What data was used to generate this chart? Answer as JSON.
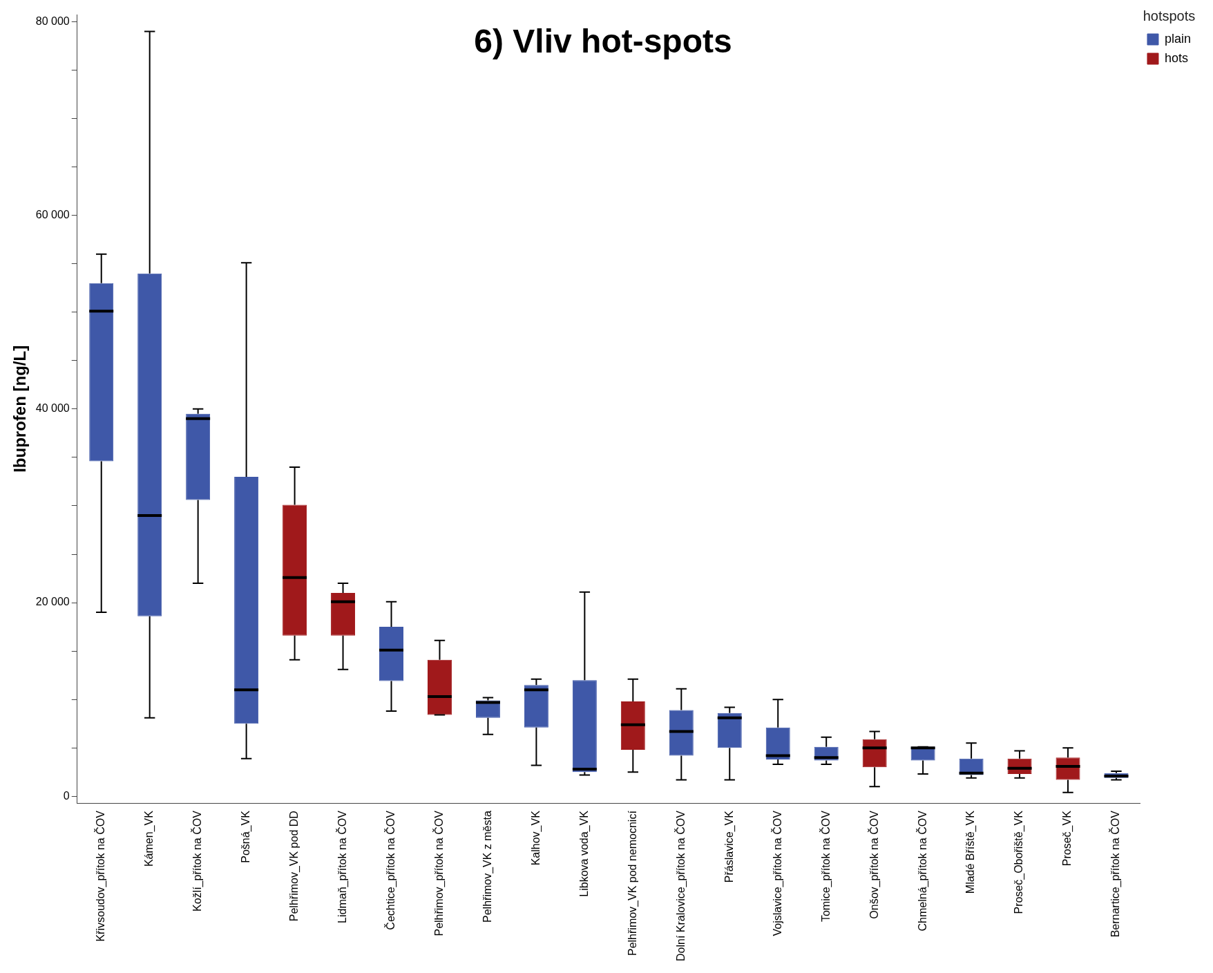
{
  "chart_data": {
    "type": "box",
    "title": "6) Vliv hot-spots",
    "ylabel": "Ibuprofen [ng/L]",
    "legend_title": "hotspots",
    "legend": "top right",
    "grid": false,
    "categories": [
      "Křivsoudov_přítok na ČOV",
      "Kámen_VK",
      "Kožlí_přítok na ČOV",
      "Pošná_VK",
      "Pelhřimov_VK pod DD",
      "Lidmaň_přítok na ČOV",
      "Čechtice_přítok na ČOV",
      "Pelhřimov_přítok na ČOV",
      "Pelhřimov_VK z města",
      "Kalhov_VK",
      "Libkova voda_VK",
      "Pelhřimov_VK pod nemocnicí",
      "Dolní Kralovice_přítok na ČOV",
      "Přáslavice_VK",
      "Vojslavice_přítok na ČOV",
      "Tomice_přítok na ČOV",
      "Onšov_přítok na ČOV",
      "Chmelná_přítok na ČOV",
      "Mladé Bříště_VK",
      "Proseč_Obořiště_VK",
      "Proseč_VK",
      "Bernartice_přítok na ČOV"
    ],
    "ylim": [
      -700,
      80700
    ],
    "yticks": [
      {
        "value": 0,
        "label": "0"
      },
      {
        "value": 5000,
        "label": null
      },
      {
        "value": 10000,
        "label": null
      },
      {
        "value": 15000,
        "label": null
      },
      {
        "value": 20000,
        "label": "20 000"
      },
      {
        "value": 25000,
        "label": null
      },
      {
        "value": 30000,
        "label": null
      },
      {
        "value": 35000,
        "label": null
      },
      {
        "value": 40000,
        "label": "40 000"
      },
      {
        "value": 45000,
        "label": null
      },
      {
        "value": 50000,
        "label": null
      },
      {
        "value": 55000,
        "label": null
      },
      {
        "value": 60000,
        "label": "60 000"
      },
      {
        "value": 65000,
        "label": null
      },
      {
        "value": 70000,
        "label": null
      },
      {
        "value": 75000,
        "label": null
      },
      {
        "value": 80000,
        "label": "80 000"
      }
    ],
    "series": [
      {
        "name": "plain",
        "color": "#3f58a8",
        "boxes": [
          {
            "low": 19000,
            "q1": 34600,
            "median": 50100,
            "q3": 53000,
            "high": 56000
          },
          {
            "low": 8100,
            "q1": 18600,
            "median": 29000,
            "q3": 54000,
            "high": 79000
          },
          {
            "low": 22000,
            "q1": 30600,
            "median": 39000,
            "q3": 39500,
            "high": 40000
          },
          {
            "low": 3900,
            "q1": 7500,
            "median": 11000,
            "q3": 33000,
            "high": 55100
          },
          null,
          null,
          {
            "low": 8800,
            "q1": 11900,
            "median": 15100,
            "q3": 17500,
            "high": 20100
          },
          null,
          {
            "low": 6400,
            "q1": 8100,
            "median": 9700,
            "q3": 9900,
            "high": 10200
          },
          {
            "low": 3200,
            "q1": 7100,
            "median": 11000,
            "q3": 11500,
            "high": 12100
          },
          {
            "low": 2200,
            "q1": 2500,
            "median": 2800,
            "q3": 12000,
            "high": 21100
          },
          null,
          {
            "low": 1700,
            "q1": 4200,
            "median": 6700,
            "q3": 8900,
            "high": 11100
          },
          {
            "low": 1700,
            "q1": 5000,
            "median": 8100,
            "q3": 8600,
            "high": 9200
          },
          {
            "low": 3300,
            "q1": 3800,
            "median": 4200,
            "q3": 7100,
            "high": 10000
          },
          {
            "low": 3300,
            "q1": 3700,
            "median": 4000,
            "q3": 5100,
            "high": 6100
          },
          null,
          {
            "low": 2300,
            "q1": 3700,
            "median": 5000,
            "q3": 5100,
            "high": 5100
          },
          {
            "low": 1900,
            "q1": 2200,
            "median": 2400,
            "q3": 3900,
            "high": 5500
          },
          null,
          null,
          {
            "low": 1700,
            "q1": 1900,
            "median": 2100,
            "q3": 2400,
            "high": 2600
          }
        ]
      },
      {
        "name": "hots",
        "color": "#a0191b",
        "boxes": [
          null,
          null,
          null,
          null,
          {
            "low": 14100,
            "q1": 16600,
            "median": 22600,
            "q3": 30100,
            "high": 34000
          },
          {
            "low": 13100,
            "q1": 16600,
            "median": 20100,
            "q3": 21000,
            "high": 22000
          },
          null,
          {
            "low": 8400,
            "q1": 8400,
            "median": 10300,
            "q3": 14100,
            "high": 16100
          },
          null,
          null,
          null,
          {
            "low": 2500,
            "q1": 4800,
            "median": 7400,
            "q3": 9800,
            "high": 12100
          },
          null,
          null,
          null,
          null,
          {
            "low": 1000,
            "q1": 3000,
            "median": 5000,
            "q3": 5900,
            "high": 6700
          },
          null,
          null,
          {
            "low": 1900,
            "q1": 2300,
            "median": 2900,
            "q3": 3900,
            "high": 4700
          },
          {
            "low": 400,
            "q1": 1700,
            "median": 3100,
            "q3": 4000,
            "high": 5000
          },
          null
        ]
      }
    ]
  }
}
